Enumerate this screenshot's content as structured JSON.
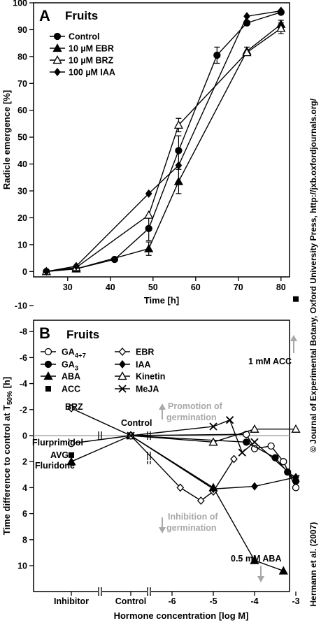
{
  "credit": "Hermann et al. (2007)",
  "copyright": "© Journal of Experimental Botany, Oxford University Press, http://jxb.oxfordjournals.org/",
  "chart_data": [
    {
      "panel": "A",
      "type": "line",
      "title": "Fruits",
      "xlabel": "Time [h]",
      "ylabel": "Radicle emergence [%]",
      "xlim": [
        22,
        82
      ],
      "ylim": [
        -2,
        100
      ],
      "xticks": [
        30,
        40,
        50,
        60,
        70,
        80
      ],
      "yticks": [
        0,
        10,
        20,
        30,
        40,
        50,
        60,
        70,
        80,
        90,
        100
      ],
      "grid": false,
      "legend": "top-left",
      "series": [
        {
          "name": "Control",
          "marker": "circle-filled",
          "x": [
            25,
            32,
            41,
            49,
            56,
            65,
            72,
            80
          ],
          "y": [
            0,
            1,
            4.5,
            16,
            45,
            80.5,
            92.5,
            96.5
          ],
          "err": [
            0,
            0,
            0,
            4.5,
            5.5,
            3,
            0,
            0
          ]
        },
        {
          "name": "10 µM EBR",
          "marker": "triangle-filled",
          "x": [
            25,
            32,
            49,
            56,
            72,
            80
          ],
          "y": [
            0,
            1,
            8.5,
            33.5,
            82,
            92
          ],
          "err": [
            0,
            0,
            2.5,
            4.5,
            1.5,
            1.5
          ]
        },
        {
          "name": "10 µM BRZ",
          "marker": "triangle-open",
          "x": [
            25,
            32,
            49,
            56,
            72,
            80
          ],
          "y": [
            0,
            1.5,
            21,
            54.5,
            81.5,
            90.5
          ],
          "err": [
            0,
            0,
            0,
            2.5,
            0,
            2
          ]
        },
        {
          "name": "100 µM IAA",
          "marker": "diamond-filled",
          "x": [
            25,
            32,
            49,
            56,
            72,
            80
          ],
          "y": [
            0,
            2,
            29,
            39.5,
            95,
            97
          ],
          "err": [
            0,
            0,
            0,
            0,
            0,
            0
          ]
        }
      ]
    },
    {
      "panel": "B",
      "type": "line",
      "title": "Fruits",
      "xlabel": "Hormone concentration [log M]",
      "ylabel": "Time difference to control at T50% [h]",
      "ylim": [
        11,
        -11
      ],
      "yticks": [
        10,
        8,
        6,
        4,
        2,
        0,
        -2,
        -4,
        -6,
        -8,
        -10
      ],
      "xticks_labels": [
        "Inhibitor",
        "Control",
        "-6",
        "-5",
        "-4",
        "-3"
      ],
      "reference_line": 0,
      "grid": false,
      "legend": "top-left",
      "series": [
        {
          "name": "GA4+7",
          "marker": "circle-open",
          "x": [
            "Inhibitor",
            "Control",
            -4.2,
            -4,
            -3.6,
            -3.3,
            -3
          ],
          "y": [
            0.6,
            0,
            -0.1,
            1,
            0.8,
            2,
            4
          ]
        },
        {
          "name": "GA3",
          "marker": "circle-filled",
          "x": [
            "Control",
            -4.2,
            -3.5,
            -3.2,
            -3
          ],
          "y": [
            0,
            0.5,
            1.7,
            2.8,
            3.5
          ]
        },
        {
          "name": "ABA",
          "marker": "triangle-filled",
          "x": [
            "Inhibitor",
            "Control",
            -5,
            -4,
            -3.3
          ],
          "y": [
            2,
            0,
            4,
            9.6,
            10.4
          ]
        },
        {
          "name": "ACC",
          "marker": "square-filled",
          "x": [
            "Inhibitor",
            -3
          ],
          "y": [
            1.5,
            -10.5
          ]
        },
        {
          "name": "EBR",
          "marker": "diamond-open",
          "x": [
            "Inhibitor",
            "Control",
            -5.8,
            -5.3,
            -5,
            -4.5
          ],
          "y": [
            -2.1,
            0,
            4,
            5,
            4.3,
            1.8
          ]
        },
        {
          "name": "IAA",
          "marker": "diamond-filled",
          "x": [
            "Control",
            -5,
            -4,
            -3
          ],
          "y": [
            0,
            4.1,
            3.9,
            3.2
          ]
        },
        {
          "name": "Kinetin",
          "marker": "triangle-open",
          "x": [
            "Control",
            -5,
            -4,
            -3
          ],
          "y": [
            0,
            0.5,
            -0.5,
            -0.5
          ]
        },
        {
          "name": "MeJA",
          "marker": "cross",
          "x": [
            "Control",
            -5,
            -4.6,
            -4.3,
            -4,
            -3
          ],
          "y": [
            0,
            -0.7,
            -1.2,
            1.3,
            0.5,
            3.3
          ]
        }
      ],
      "annotations": {
        "brz": "BRZ",
        "control": "Control",
        "flurprimidol": "Flurprimidol",
        "avg": "AVG",
        "fluridone": "Fluridone",
        "promotion": [
          "Promotion of",
          "germination"
        ],
        "inhibition": [
          "Inhibition of",
          "germination"
        ],
        "aba_note": "0.5 mM ABA",
        "acc_note": "1 mM ACC"
      }
    }
  ]
}
